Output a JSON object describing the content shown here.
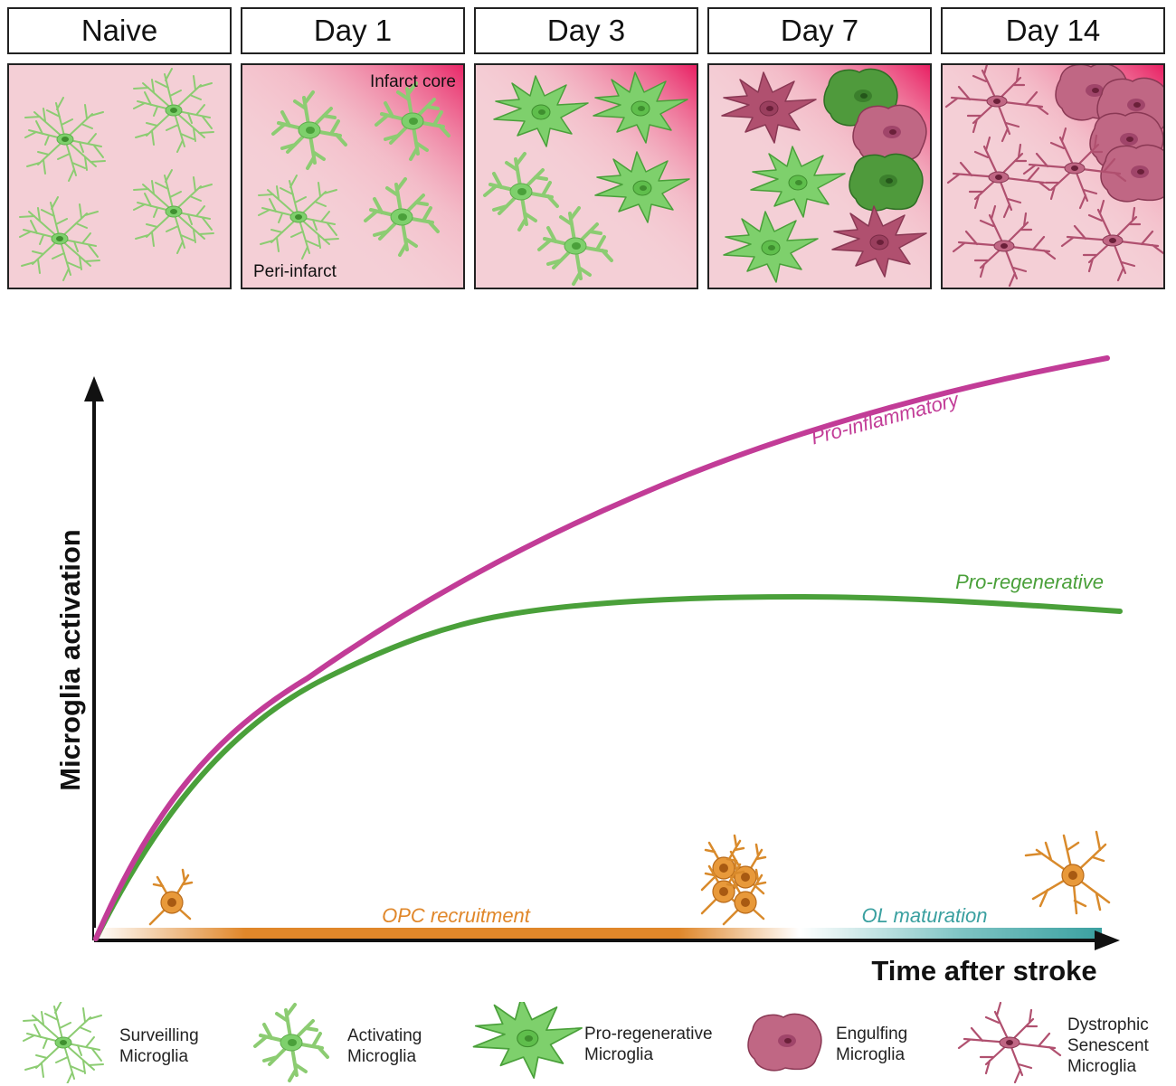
{
  "stages": [
    {
      "label": "Naive"
    },
    {
      "label": "Day 1"
    },
    {
      "label": "Day 3"
    },
    {
      "label": "Day 7"
    },
    {
      "label": "Day 14"
    }
  ],
  "panel_annotations": {
    "infarct_core": "Infarct core",
    "peri_infarct": "Peri-infarct"
  },
  "graph": {
    "y_axis_label": "Microglia activation",
    "x_axis_label": "Time after stroke",
    "curves": {
      "pro_inflammatory": {
        "label": "Pro-inflammatory",
        "color": "#c23c97"
      },
      "pro_regenerative": {
        "label": "Pro-regenerative",
        "color": "#4aa03a"
      }
    },
    "opc_recruitment": {
      "label": "OPC recruitment",
      "color": "#e0872a"
    },
    "ol_maturation": {
      "label": "OL maturation",
      "color": "#3aa0a0"
    }
  },
  "legend": [
    {
      "line1": "Surveilling",
      "line2": "Microglia",
      "line3": ""
    },
    {
      "line1": "Activating",
      "line2": "Microglia",
      "line3": ""
    },
    {
      "line1": "Pro-regenerative",
      "line2": "Microglia",
      "line3": ""
    },
    {
      "line1": "Engulfing",
      "line2": "Microglia",
      "line3": ""
    },
    {
      "line1": "Dystrophic",
      "line2": "Senescent",
      "line3": "Microglia"
    }
  ],
  "colors": {
    "panel_bg": "#f4cfd6",
    "infarct": "#e8195f",
    "green_light": "#7ed06c",
    "green_dark": "#3f8f2f",
    "mauve": "#b0506f",
    "opc_orange": "#d98a2b"
  }
}
